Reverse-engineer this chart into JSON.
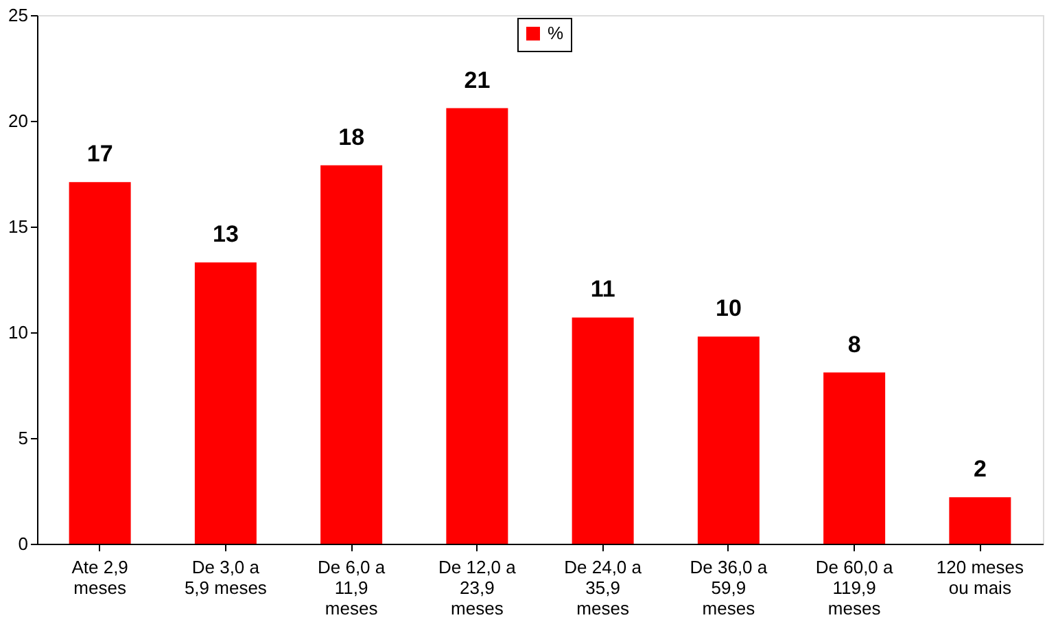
{
  "chart_data": {
    "type": "bar",
    "categories": [
      "Ate 2,9\nmeses",
      "De 3,0 a\n5,9 meses",
      "De 6,0 a\n11,9\nmeses",
      "De 12,0 a\n23,9\nmeses",
      "De 24,0 a\n35,9\nmeses",
      "De 36,0 a\n59,9\nmeses",
      "De 60,0 a\n119,9\nmeses",
      "120 meses\nou mais"
    ],
    "series": [
      {
        "name": "%",
        "color": "#ff0000",
        "values": [
          17.1,
          13.3,
          17.9,
          20.6,
          10.7,
          9.8,
          8.1,
          2.2
        ],
        "value_labels": [
          "17",
          "13",
          "18",
          "21",
          "11",
          "10",
          "8",
          "2"
        ]
      }
    ],
    "ylim": [
      0,
      25
    ],
    "yticks": [
      0,
      5,
      10,
      15,
      20,
      25
    ],
    "grid": false,
    "legend": "top"
  }
}
